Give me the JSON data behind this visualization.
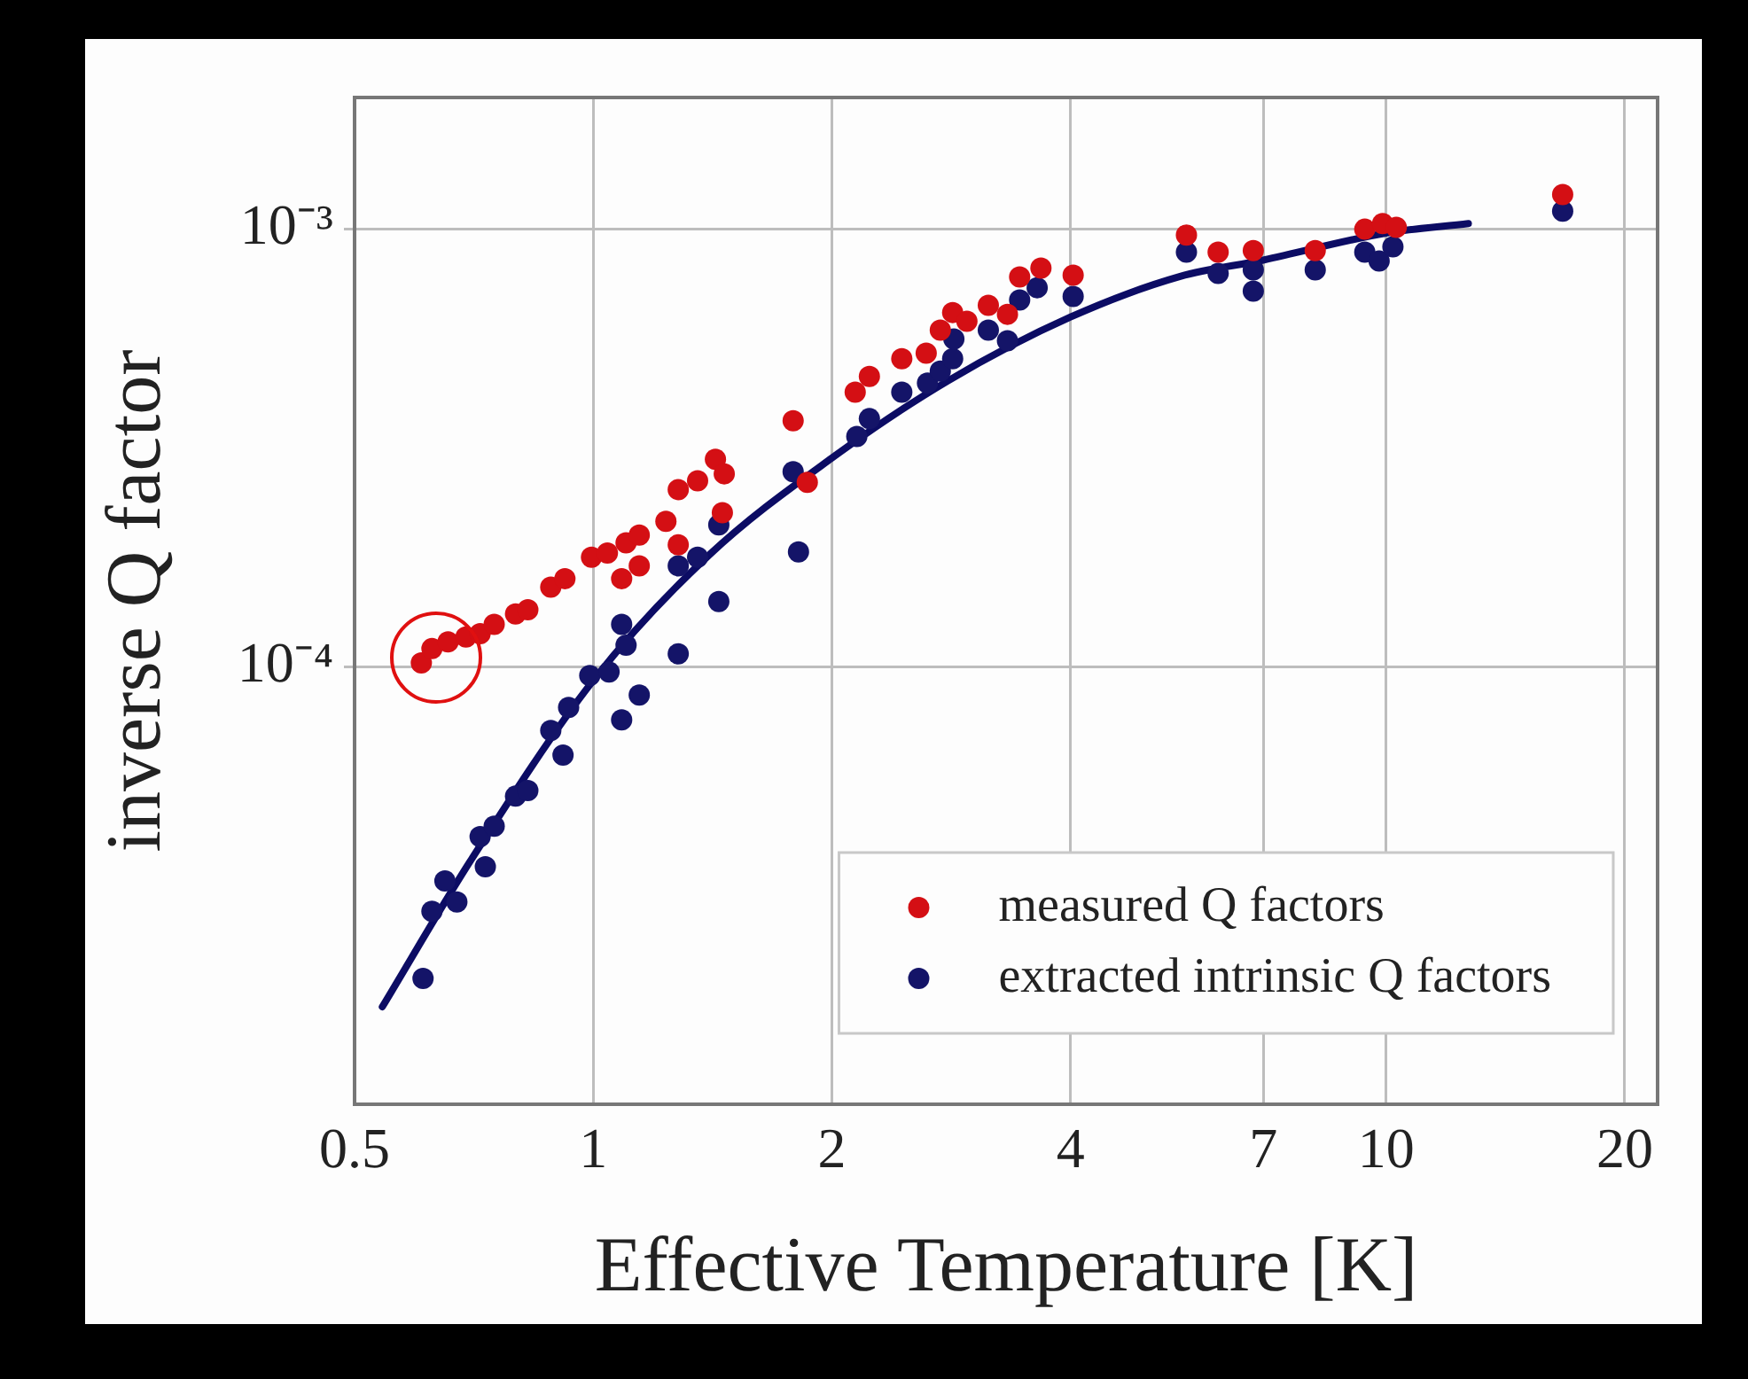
{
  "chart_data": {
    "type": "scatter",
    "xlabel": "Effective Temperature [K]",
    "ylabel": "inverse Q factor",
    "log": "xy",
    "grid": true,
    "legend": "bottom right",
    "marker": "circle",
    "xlim": [
      0.5,
      22
    ],
    "xticks": [
      0.5,
      1,
      2,
      4,
      7,
      10,
      20
    ],
    "ylim": [
      1e-05,
      0.002
    ],
    "yticks": [
      {
        "value": 0.0001,
        "label": "10⁻⁴"
      },
      {
        "value": 0.001,
        "label": "10⁻³"
      }
    ],
    "series": [
      {
        "name": "measured Q factors",
        "color": "#d40f14",
        "x": [
          0.607,
          0.626,
          0.656,
          0.691,
          0.72,
          0.75,
          0.798,
          0.827,
          0.884,
          0.921,
          0.995,
          1.042,
          1.086,
          1.1,
          1.143,
          1.143,
          1.235,
          1.28,
          1.28,
          1.354,
          1.426,
          1.463,
          1.455,
          1.787,
          1.862,
          2.14,
          2.23,
          2.45,
          2.63,
          2.74,
          2.84,
          2.96,
          3.15,
          3.33,
          3.45,
          3.67,
          4.03,
          5.6,
          6.14,
          6.8,
          8.14,
          9.4,
          9.9,
          10.3,
          16.7
        ],
        "values": [
          0.000102,
          0.00011,
          0.000114,
          0.000117,
          0.000119,
          0.000125,
          0.000132,
          0.000135,
          0.000152,
          0.000159,
          0.000178,
          0.000182,
          0.000159,
          0.000192,
          0.00017,
          0.0002,
          0.000215,
          0.00019,
          0.000254,
          0.000266,
          0.000298,
          0.000276,
          0.000225,
          0.000365,
          0.000264,
          0.000424,
          0.000461,
          0.000506,
          0.000521,
          0.000588,
          0.000645,
          0.000616,
          0.00067,
          0.000639,
          0.000778,
          0.000815,
          0.000785,
          0.00097,
          0.000886,
          0.000894,
          0.000894,
          0.001,
          0.00103,
          0.00101,
          0.0012
        ]
      },
      {
        "name": "extracted intrinsic Q factors",
        "color": "#141468",
        "x": [
          0.61,
          0.626,
          0.65,
          0.673,
          0.72,
          0.731,
          0.75,
          0.798,
          0.827,
          0.884,
          0.916,
          0.931,
          0.99,
          1.047,
          1.086,
          1.086,
          1.1,
          1.143,
          1.28,
          1.28,
          1.354,
          1.44,
          1.44,
          1.787,
          1.815,
          2.15,
          2.23,
          2.45,
          2.64,
          2.74,
          2.84,
          2.85,
          3.15,
          3.33,
          3.45,
          3.63,
          4.03,
          5.6,
          6.14,
          6.8,
          6.8,
          8.14,
          9.4,
          9.8,
          10.2,
          16.7
        ],
        "values": [
          1.94e-05,
          2.76e-05,
          3.24e-05,
          2.9e-05,
          4.09e-05,
          3.49e-05,
          4.32e-05,
          5.06e-05,
          5.21e-05,
          7.15e-05,
          6.28e-05,
          8.07e-05,
          9.55e-05,
          9.73e-05,
          0.000125,
          7.56e-05,
          0.000112,
          8.62e-05,
          0.000107,
          0.00017,
          0.000178,
          0.000141,
          0.000211,
          0.000279,
          0.000183,
          0.000336,
          0.000369,
          0.000424,
          0.000445,
          0.000474,
          0.000506,
          0.000561,
          0.000588,
          0.000556,
          0.000689,
          0.000735,
          0.000702,
          0.000886,
          0.000792,
          0.000807,
          0.000722,
          0.000807,
          0.000886,
          0.000846,
          0.000911,
          0.0011
        ]
      },
      {
        "color": "#0c0c64",
        "type": "line",
        "line_style": "solid",
        "marker": "none",
        "x": [
          0.542,
          0.7,
          1,
          1.4,
          2,
          2.8,
          4,
          5.5,
          7,
          10,
          12.7
        ],
        "values": [
          1.67e-05,
          3.6e-05,
          9.3e-05,
          0.00018,
          0.0003,
          0.00045,
          0.00063,
          0.00078,
          0.00085,
          0.00098,
          0.00103
        ]
      }
    ]
  }
}
